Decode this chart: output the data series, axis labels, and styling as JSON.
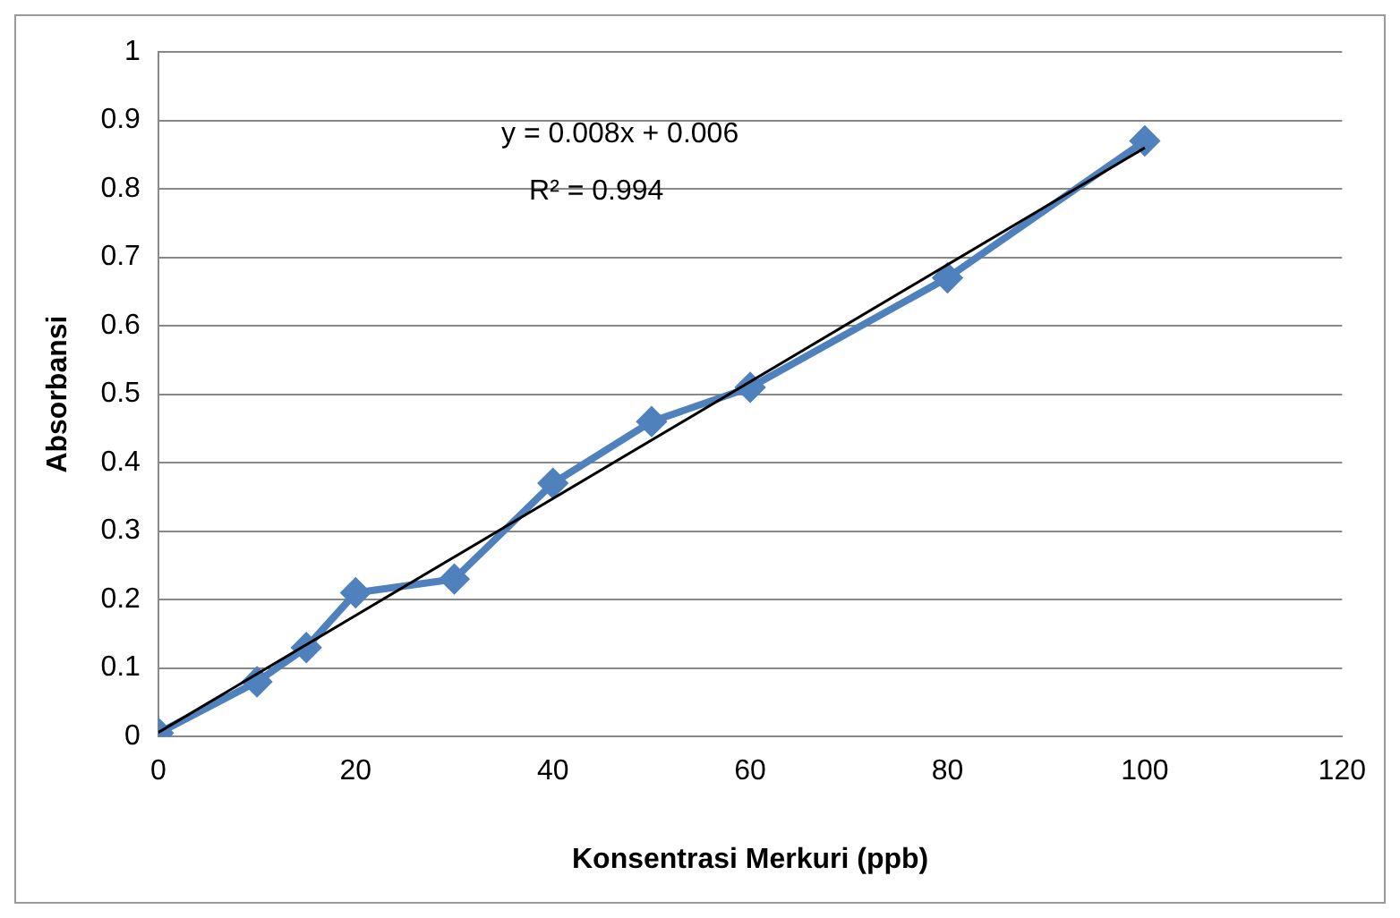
{
  "chart_data": {
    "type": "scatter",
    "xlabel": "Konsentrasi Merkuri (ppb)",
    "ylabel": "Absorbansi",
    "xlim": [
      0,
      120
    ],
    "xticks": [
      0,
      20,
      40,
      60,
      80,
      100,
      120
    ],
    "ylim": [
      0,
      1
    ],
    "yticks": [
      0,
      0.1,
      0.2,
      0.3,
      0.4,
      0.5,
      0.6,
      0.7,
      0.8,
      0.9,
      1
    ],
    "grid": "y",
    "legend": false,
    "marker": "diamond",
    "line_style": "solid",
    "series": [
      {
        "type": "line",
        "color": "#4f81bd",
        "x": [
          0,
          10,
          15,
          20,
          30,
          40,
          50,
          60,
          80,
          100
        ],
        "values": [
          0.005,
          0.08,
          0.13,
          0.21,
          0.23,
          0.37,
          0.46,
          0.51,
          0.67,
          0.87
        ]
      },
      {
        "type": "line",
        "color": "#000000",
        "marker": "none",
        "x": [
          0,
          100
        ],
        "values": [
          0.006,
          0.86
        ]
      }
    ],
    "annotations": [
      "y = 0.008x + 0.006",
      "R² = 0.994"
    ]
  }
}
